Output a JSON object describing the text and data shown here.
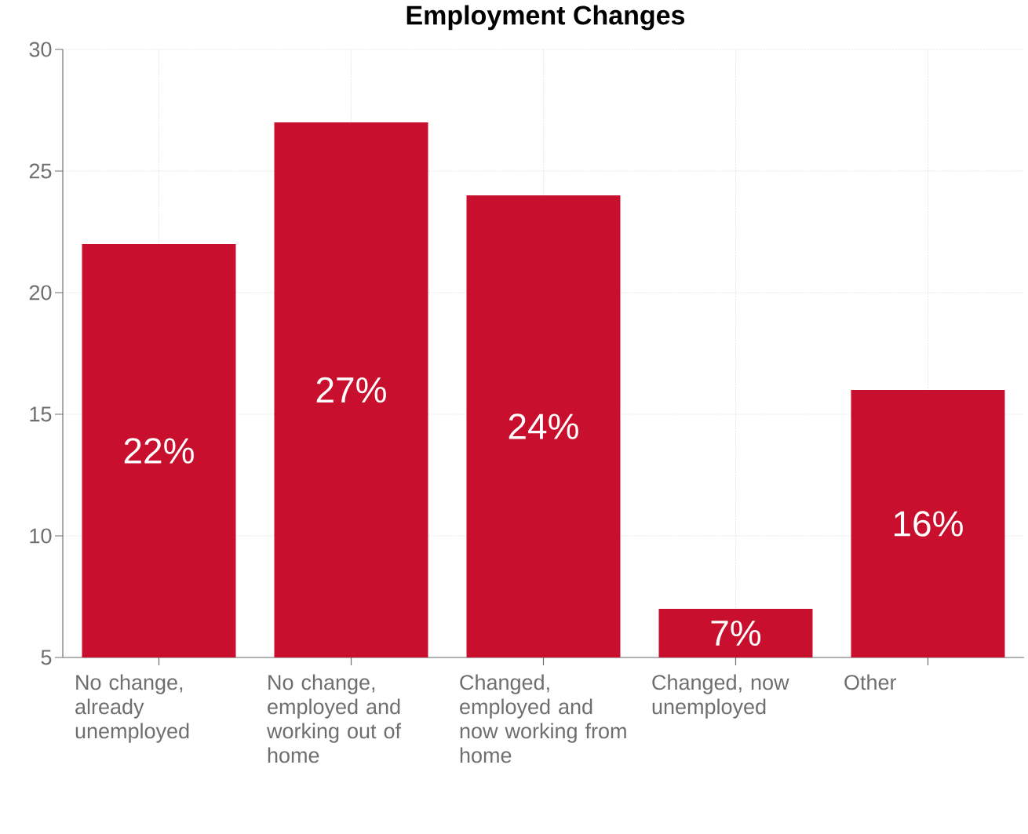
{
  "chart_data": {
    "type": "bar",
    "title": "Employment Changes",
    "categories": [
      "No change, already unemployed",
      "No change, employed and working out of home",
      "Changed, employed and now working from home",
      "Changed, now unemployed",
      "Other"
    ],
    "values": [
      22,
      27,
      24,
      7,
      16
    ],
    "value_labels": [
      "22%",
      "27%",
      "24%",
      "7%",
      "16%"
    ],
    "color": "#c8102e",
    "ylim": [
      5,
      30
    ],
    "yticks": [
      5,
      10,
      15,
      20,
      25,
      30
    ],
    "grid": true
  }
}
